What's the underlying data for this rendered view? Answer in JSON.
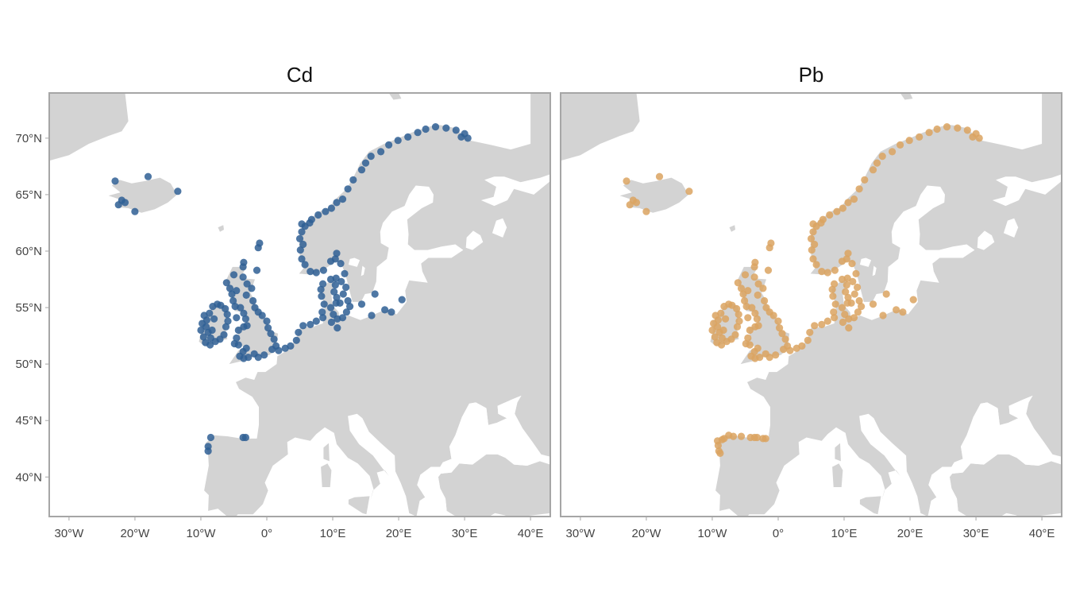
{
  "figure_type": "faceted point map of sampling sites over a map of Europe",
  "chart_data": [
    {
      "type": "scatter",
      "title": "Cd",
      "color": "#2f5f94",
      "xlabel": "",
      "ylabel": "",
      "xlim": [
        -33,
        43
      ],
      "ylim": [
        36.5,
        74
      ],
      "x_ticks": [
        -30,
        -20,
        -10,
        0,
        10,
        20,
        30,
        40
      ],
      "x_tick_labels": [
        "30°W",
        "20°W",
        "10°W",
        "0°",
        "10°E",
        "20°E",
        "30°E",
        "40°E"
      ],
      "y_ticks": [
        40,
        45,
        50,
        55,
        60,
        65,
        70
      ],
      "y_tick_labels": [
        "40°N",
        "45°N",
        "50°N",
        "55°N",
        "60°N",
        "65°N",
        "70°N"
      ],
      "grid": false,
      "points": [
        [
          -23,
          66.2
        ],
        [
          -22,
          64.5
        ],
        [
          -21.5,
          64.3
        ],
        [
          -22.5,
          64.1
        ],
        [
          -20,
          63.5
        ],
        [
          -18,
          66.6
        ],
        [
          -13.5,
          65.3
        ],
        [
          -9.5,
          54.3
        ],
        [
          -9.8,
          53.6
        ],
        [
          -10,
          53
        ],
        [
          -9.6,
          52.4
        ],
        [
          -9.3,
          51.9
        ],
        [
          -8.6,
          51.7
        ],
        [
          -8.5,
          52.3
        ],
        [
          -8.9,
          52.8
        ],
        [
          -9.2,
          53.3
        ],
        [
          -9.1,
          53.9
        ],
        [
          -8.7,
          54.5
        ],
        [
          -8.2,
          55.1
        ],
        [
          -7.5,
          55.3
        ],
        [
          -7,
          55.2
        ],
        [
          -6.3,
          54.9
        ],
        [
          -6,
          54.4
        ],
        [
          -5.9,
          53.8
        ],
        [
          -6.2,
          53.3
        ],
        [
          -6.5,
          52.6
        ],
        [
          -7.1,
          52.2
        ],
        [
          -7.8,
          52
        ],
        [
          -8.3,
          53
        ],
        [
          -8,
          54
        ],
        [
          -6.1,
          57.2
        ],
        [
          -5.6,
          56.7
        ],
        [
          -5.3,
          56.2
        ],
        [
          -5.1,
          55.6
        ],
        [
          -4.8,
          55.1
        ],
        [
          -4.6,
          56.5
        ],
        [
          -5,
          57.9
        ],
        [
          -3.6,
          57.7
        ],
        [
          -3,
          57.1
        ],
        [
          -2.3,
          56.7
        ],
        [
          -3.1,
          56.1
        ],
        [
          -2.1,
          55.6
        ],
        [
          -1.8,
          55
        ],
        [
          -1.3,
          54.6
        ],
        [
          -0.7,
          54.3
        ],
        [
          0,
          53.8
        ],
        [
          0.2,
          53.2
        ],
        [
          0.6,
          52.7
        ],
        [
          1.1,
          52.2
        ],
        [
          1.4,
          51.6
        ],
        [
          0.8,
          51.3
        ],
        [
          -0.4,
          50.8
        ],
        [
          -1.3,
          50.6
        ],
        [
          -1.9,
          50.9
        ],
        [
          -2.8,
          50.6
        ],
        [
          -3.5,
          50.5
        ],
        [
          -4.1,
          50.7
        ],
        [
          -3.6,
          51.1
        ],
        [
          -3.1,
          51.4
        ],
        [
          -4.3,
          51.7
        ],
        [
          -4.9,
          51.8
        ],
        [
          -4.6,
          52.3
        ],
        [
          -4.3,
          53
        ],
        [
          -3.5,
          53.3
        ],
        [
          -3,
          53.4
        ],
        [
          -3.2,
          54
        ],
        [
          -3.5,
          54.5
        ],
        [
          -4.6,
          54.1
        ],
        [
          -4,
          55
        ],
        [
          -3.6,
          58.6
        ],
        [
          -3.5,
          59
        ],
        [
          -1.3,
          60.3
        ],
        [
          -1.1,
          60.7
        ],
        [
          -1.5,
          58.3
        ],
        [
          1.8,
          51.2
        ],
        [
          2.8,
          51.4
        ],
        [
          3.6,
          51.6
        ],
        [
          4.5,
          52.1
        ],
        [
          4.8,
          52.8
        ],
        [
          5.5,
          53.4
        ],
        [
          6.6,
          53.5
        ],
        [
          7.5,
          53.8
        ],
        [
          8.5,
          54.1
        ],
        [
          8.4,
          54.6
        ],
        [
          8.7,
          55.3
        ],
        [
          8.3,
          56
        ],
        [
          8.2,
          56.6
        ],
        [
          8.5,
          57.1
        ],
        [
          9.7,
          57.5
        ],
        [
          10.5,
          57.6
        ],
        [
          10.4,
          57
        ],
        [
          10.2,
          56.4
        ],
        [
          10.6,
          55.9
        ],
        [
          11.1,
          55.4
        ],
        [
          12.3,
          55.6
        ],
        [
          12.6,
          55.1
        ],
        [
          12.1,
          54.6
        ],
        [
          11.5,
          54.1
        ],
        [
          10.7,
          54
        ],
        [
          10.1,
          54.4
        ],
        [
          9.7,
          55
        ],
        [
          10.5,
          55.4
        ],
        [
          11.6,
          56.2
        ],
        [
          12,
          56.8
        ],
        [
          11.3,
          57.3
        ],
        [
          11.8,
          58
        ],
        [
          11.2,
          58.9
        ],
        [
          10.4,
          59.3
        ],
        [
          10.6,
          59.8
        ],
        [
          9.7,
          59.1
        ],
        [
          8.6,
          58.3
        ],
        [
          7.5,
          58.1
        ],
        [
          6.6,
          58.2
        ],
        [
          5.8,
          58.8
        ],
        [
          5.3,
          59.3
        ],
        [
          5.1,
          60.1
        ],
        [
          5.5,
          60.6
        ],
        [
          5,
          61.1
        ],
        [
          5.3,
          61.7
        ],
        [
          5.8,
          62.2
        ],
        [
          6.5,
          62.5
        ],
        [
          5.3,
          62.4
        ],
        [
          6.8,
          62.8
        ],
        [
          7.8,
          63.2
        ],
        [
          8.9,
          63.5
        ],
        [
          9.8,
          63.8
        ],
        [
          10.6,
          64.3
        ],
        [
          11.5,
          64.6
        ],
        [
          12.3,
          65.5
        ],
        [
          13.1,
          66.3
        ],
        [
          14.4,
          67.2
        ],
        [
          15,
          67.8
        ],
        [
          15.8,
          68.4
        ],
        [
          17.3,
          68.8
        ],
        [
          18.5,
          69.4
        ],
        [
          19.9,
          69.8
        ],
        [
          21.4,
          70.1
        ],
        [
          22.9,
          70.5
        ],
        [
          24.1,
          70.8
        ],
        [
          25.6,
          71
        ],
        [
          27.2,
          70.9
        ],
        [
          28.7,
          70.7
        ],
        [
          30,
          70.4
        ],
        [
          30.5,
          70
        ],
        [
          29.5,
          70.1
        ],
        [
          14.4,
          55.3
        ],
        [
          16.4,
          56.2
        ],
        [
          17.9,
          54.8
        ],
        [
          18.9,
          54.6
        ],
        [
          20.5,
          55.7
        ],
        [
          15.9,
          54.3
        ],
        [
          10.7,
          53.2
        ],
        [
          9.8,
          53.7
        ],
        [
          -3.2,
          43.5
        ],
        [
          -3.6,
          43.5
        ],
        [
          -8.5,
          43.5
        ],
        [
          -8.9,
          42.7
        ],
        [
          -8.9,
          42.3
        ]
      ]
    },
    {
      "type": "scatter",
      "title": "Pb",
      "color": "#dba360",
      "xlabel": "",
      "ylabel": "",
      "xlim": [
        -33,
        43
      ],
      "ylim": [
        36.5,
        74
      ],
      "x_ticks": [
        -30,
        -20,
        -10,
        0,
        10,
        20,
        30,
        40
      ],
      "x_tick_labels": [
        "30°W",
        "20°W",
        "10°W",
        "0°",
        "10°E",
        "20°E",
        "30°E",
        "40°E"
      ],
      "y_ticks": [
        40,
        45,
        50,
        55,
        60,
        65,
        70
      ],
      "y_tick_labels": [
        "40°N",
        "45°N",
        "50°N",
        "55°N",
        "60°N",
        "65°N",
        "70°N"
      ],
      "grid": false,
      "points": [
        [
          -23,
          66.2
        ],
        [
          -22,
          64.5
        ],
        [
          -21.5,
          64.3
        ],
        [
          -22.5,
          64.1
        ],
        [
          -20,
          63.5
        ],
        [
          -18,
          66.6
        ],
        [
          -13.5,
          65.3
        ],
        [
          -9.5,
          54.3
        ],
        [
          -9.8,
          53.6
        ],
        [
          -10,
          53
        ],
        [
          -9.6,
          52.4
        ],
        [
          -9.3,
          51.9
        ],
        [
          -8.6,
          51.7
        ],
        [
          -8.5,
          52.3
        ],
        [
          -8.9,
          52.8
        ],
        [
          -9.2,
          53.3
        ],
        [
          -9.1,
          53.9
        ],
        [
          -8.7,
          54.5
        ],
        [
          -8.2,
          55.1
        ],
        [
          -7.5,
          55.3
        ],
        [
          -7,
          55.2
        ],
        [
          -6.3,
          54.9
        ],
        [
          -6,
          54.4
        ],
        [
          -5.9,
          53.8
        ],
        [
          -6.2,
          53.3
        ],
        [
          -6.5,
          52.6
        ],
        [
          -7.1,
          52.2
        ],
        [
          -7.8,
          52
        ],
        [
          -8.3,
          53
        ],
        [
          -8,
          54
        ],
        [
          -6.1,
          57.2
        ],
        [
          -5.6,
          56.7
        ],
        [
          -5.3,
          56.2
        ],
        [
          -5.1,
          55.6
        ],
        [
          -4.8,
          55.1
        ],
        [
          -4.6,
          56.5
        ],
        [
          -5,
          57.9
        ],
        [
          -3.6,
          57.7
        ],
        [
          -3,
          57.1
        ],
        [
          -2.3,
          56.7
        ],
        [
          -3.1,
          56.1
        ],
        [
          -2.1,
          55.6
        ],
        [
          -1.8,
          55
        ],
        [
          -1.3,
          54.6
        ],
        [
          -0.7,
          54.3
        ],
        [
          0,
          53.8
        ],
        [
          0.2,
          53.2
        ],
        [
          0.6,
          52.7
        ],
        [
          1.1,
          52.2
        ],
        [
          1.4,
          51.6
        ],
        [
          0.8,
          51.3
        ],
        [
          -0.4,
          50.8
        ],
        [
          -1.3,
          50.6
        ],
        [
          -1.9,
          50.9
        ],
        [
          -2.8,
          50.6
        ],
        [
          -3.5,
          50.5
        ],
        [
          -4.1,
          50.7
        ],
        [
          -3.6,
          51.1
        ],
        [
          -3.1,
          51.4
        ],
        [
          -4.3,
          51.7
        ],
        [
          -4.9,
          51.8
        ],
        [
          -4.6,
          52.3
        ],
        [
          -4.3,
          53
        ],
        [
          -3.5,
          53.3
        ],
        [
          -3,
          53.4
        ],
        [
          -3.2,
          54
        ],
        [
          -3.5,
          54.5
        ],
        [
          -4.6,
          54.1
        ],
        [
          -4,
          55
        ],
        [
          -3.6,
          58.6
        ],
        [
          -3.5,
          59
        ],
        [
          -1.3,
          60.3
        ],
        [
          -1.1,
          60.7
        ],
        [
          -1.5,
          58.3
        ],
        [
          1.8,
          51.2
        ],
        [
          2.8,
          51.4
        ],
        [
          3.6,
          51.6
        ],
        [
          4.5,
          52.1
        ],
        [
          4.8,
          52.8
        ],
        [
          5.5,
          53.4
        ],
        [
          6.6,
          53.5
        ],
        [
          7.5,
          53.8
        ],
        [
          8.5,
          54.1
        ],
        [
          8.4,
          54.6
        ],
        [
          8.7,
          55.3
        ],
        [
          8.3,
          56
        ],
        [
          8.2,
          56.6
        ],
        [
          8.5,
          57.1
        ],
        [
          9.7,
          57.5
        ],
        [
          10.5,
          57.6
        ],
        [
          10.4,
          57
        ],
        [
          10.2,
          56.4
        ],
        [
          10.6,
          55.9
        ],
        [
          11.1,
          55.4
        ],
        [
          12.3,
          55.6
        ],
        [
          12.6,
          55.1
        ],
        [
          12.1,
          54.6
        ],
        [
          11.5,
          54.1
        ],
        [
          10.7,
          54
        ],
        [
          10.1,
          54.4
        ],
        [
          9.7,
          55
        ],
        [
          10.5,
          55.4
        ],
        [
          11.6,
          56.2
        ],
        [
          12,
          56.8
        ],
        [
          11.3,
          57.3
        ],
        [
          11.8,
          58
        ],
        [
          11.2,
          58.9
        ],
        [
          10.4,
          59.3
        ],
        [
          10.6,
          59.8
        ],
        [
          9.7,
          59.1
        ],
        [
          8.6,
          58.3
        ],
        [
          7.5,
          58.1
        ],
        [
          6.6,
          58.2
        ],
        [
          5.8,
          58.8
        ],
        [
          5.3,
          59.3
        ],
        [
          5.1,
          60.1
        ],
        [
          5.5,
          60.6
        ],
        [
          5,
          61.1
        ],
        [
          5.3,
          61.7
        ],
        [
          5.8,
          62.2
        ],
        [
          6.5,
          62.5
        ],
        [
          5.3,
          62.4
        ],
        [
          6.8,
          62.8
        ],
        [
          7.8,
          63.2
        ],
        [
          8.9,
          63.5
        ],
        [
          9.8,
          63.8
        ],
        [
          10.6,
          64.3
        ],
        [
          11.5,
          64.6
        ],
        [
          12.3,
          65.5
        ],
        [
          13.1,
          66.3
        ],
        [
          14.4,
          67.2
        ],
        [
          15,
          67.8
        ],
        [
          15.8,
          68.4
        ],
        [
          17.3,
          68.8
        ],
        [
          18.5,
          69.4
        ],
        [
          19.9,
          69.8
        ],
        [
          21.4,
          70.1
        ],
        [
          22.9,
          70.5
        ],
        [
          24.1,
          70.8
        ],
        [
          25.6,
          71
        ],
        [
          27.2,
          70.9
        ],
        [
          28.7,
          70.7
        ],
        [
          30,
          70.4
        ],
        [
          30.5,
          70
        ],
        [
          29.5,
          70.1
        ],
        [
          14.4,
          55.3
        ],
        [
          16.4,
          56.2
        ],
        [
          17.9,
          54.8
        ],
        [
          18.9,
          54.6
        ],
        [
          20.5,
          55.7
        ],
        [
          15.9,
          54.3
        ],
        [
          10.7,
          53.2
        ],
        [
          9.8,
          53.7
        ],
        [
          -3.2,
          43.5
        ],
        [
          -3.6,
          43.5
        ],
        [
          -1.9,
          43.4
        ],
        [
          -2.3,
          43.4
        ],
        [
          -4.2,
          43.5
        ],
        [
          -5.6,
          43.6
        ],
        [
          -6.8,
          43.6
        ],
        [
          -8.2,
          43.4
        ],
        [
          -8.5,
          43.3
        ],
        [
          -9.1,
          42.8
        ],
        [
          -9,
          42.3
        ],
        [
          -8.8,
          42.1
        ],
        [
          -9.2,
          43.2
        ],
        [
          -7.5,
          43.7
        ]
      ]
    }
  ]
}
